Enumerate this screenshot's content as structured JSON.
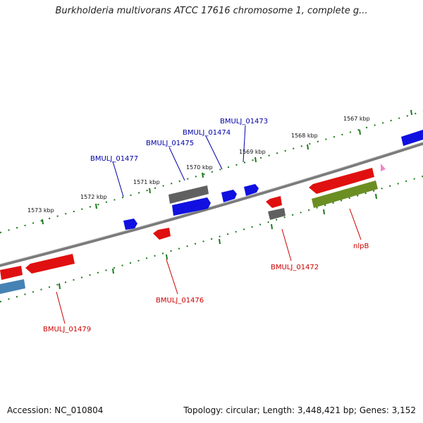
{
  "title": "Burkholderia multivorans ATCC 17616 chromosome 1, complete g...",
  "footer": {
    "accession": "Accession: NC_010804",
    "summary": "Topology: circular; Length: 3,448,421 bp; Genes: 3,152"
  },
  "colors": {
    "plus_strand_label": "#0000aa",
    "minus_strand_label": "#cc0000",
    "tick": "#1a7a1a",
    "backbone": "#7a7a7a",
    "cds_plus": "#1010e0",
    "cds_minus": "#e01010",
    "other_gray": "#606060",
    "other_olive": "#6b8e23",
    "other_steel": "#4682b4",
    "other_pink": "#ee88cc"
  },
  "scale_labels": [
    "1567 kbp",
    "1568 kbp",
    "1569 kbp",
    "1570 kbp",
    "1571 kbp",
    "1572 kbp",
    "1573 kbp"
  ],
  "genes_plus_labeled": [
    "BMULJ_01473",
    "BMULJ_01474",
    "BMULJ_01475",
    "BMULJ_01477"
  ],
  "genes_minus_labeled": [
    "BMULJ_01472",
    "BMULJ_01476",
    "BMULJ_01479",
    "nlpB"
  ]
}
